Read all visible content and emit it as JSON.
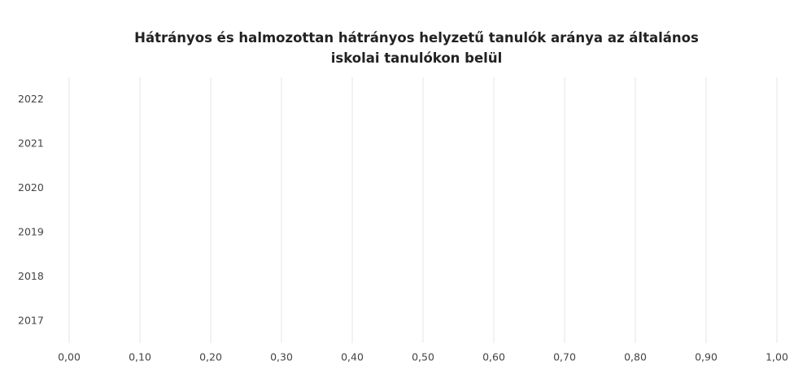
{
  "chart_data": {
    "type": "bar",
    "orientation": "horizontal",
    "title": "Hátrányos és halmozottan hátrányos helyzetű  tanulók aránya az általános iskolai tanulókon belül",
    "categories": [
      "2017",
      "2018",
      "2019",
      "2020",
      "2021",
      "2022"
    ],
    "xlim": [
      0,
      1
    ],
    "xticks": [
      {
        "value": 0,
        "label": "0,00"
      },
      {
        "value": 0.1,
        "label": "0,10"
      },
      {
        "value": 0.2,
        "label": "0,20"
      },
      {
        "value": 0.3,
        "label": "0,30"
      },
      {
        "value": 0.4,
        "label": "0,40"
      },
      {
        "value": 0.5,
        "label": "0,50"
      },
      {
        "value": 0.6,
        "label": "0,60"
      },
      {
        "value": 0.7,
        "label": "0,70"
      },
      {
        "value": 0.8,
        "label": "0,80"
      },
      {
        "value": 0.9,
        "label": "0,90"
      },
      {
        "value": 1,
        "label": "1,00"
      }
    ],
    "grid": true
  }
}
